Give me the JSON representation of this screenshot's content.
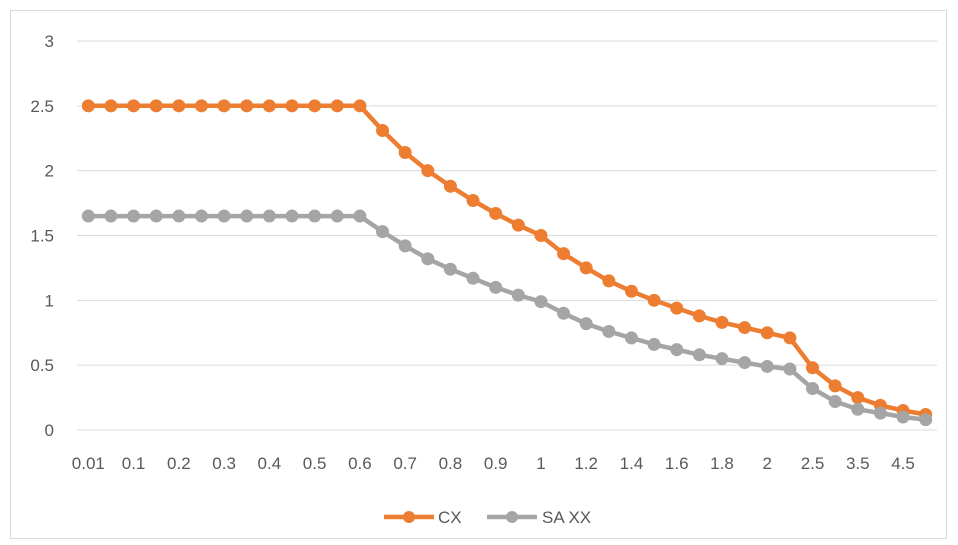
{
  "chart_data": {
    "type": "line",
    "title": "",
    "xlabel": "",
    "ylabel": "",
    "ylim": [
      0,
      3
    ],
    "yticks": [
      "0",
      "0.5",
      "1",
      "1.5",
      "2",
      "2.5",
      "3"
    ],
    "grid": true,
    "legend_position": "bottom",
    "xticklabels": [
      "0.01",
      "0.1",
      "0.2",
      "0.3",
      "0.4",
      "0.5",
      "0.6",
      "0.7",
      "0.8",
      "0.9",
      "1",
      "1.2",
      "1.4",
      "1.6",
      "1.8",
      "2",
      "2.5",
      "3.5",
      "4.5"
    ],
    "series": [
      {
        "name": "CX",
        "color": "#ED7D31",
        "values": [
          2.5,
          2.5,
          2.5,
          2.5,
          2.5,
          2.5,
          2.5,
          2.5,
          2.5,
          2.5,
          2.5,
          2.5,
          2.5,
          2.31,
          2.14,
          2.0,
          1.88,
          1.77,
          1.67,
          1.58,
          1.5,
          1.36,
          1.25,
          1.15,
          1.07,
          1.0,
          0.94,
          0.88,
          0.83,
          0.79,
          0.75,
          0.71,
          0.48,
          0.34,
          0.25,
          0.19,
          0.15,
          0.12
        ]
      },
      {
        "name": "SA XX",
        "color": "#A5A5A5",
        "values": [
          1.65,
          1.65,
          1.65,
          1.65,
          1.65,
          1.65,
          1.65,
          1.65,
          1.65,
          1.65,
          1.65,
          1.65,
          1.65,
          1.53,
          1.42,
          1.32,
          1.24,
          1.17,
          1.1,
          1.04,
          0.99,
          0.9,
          0.82,
          0.76,
          0.71,
          0.66,
          0.62,
          0.58,
          0.55,
          0.52,
          0.49,
          0.47,
          0.32,
          0.22,
          0.16,
          0.13,
          0.1,
          0.08
        ]
      }
    ]
  }
}
